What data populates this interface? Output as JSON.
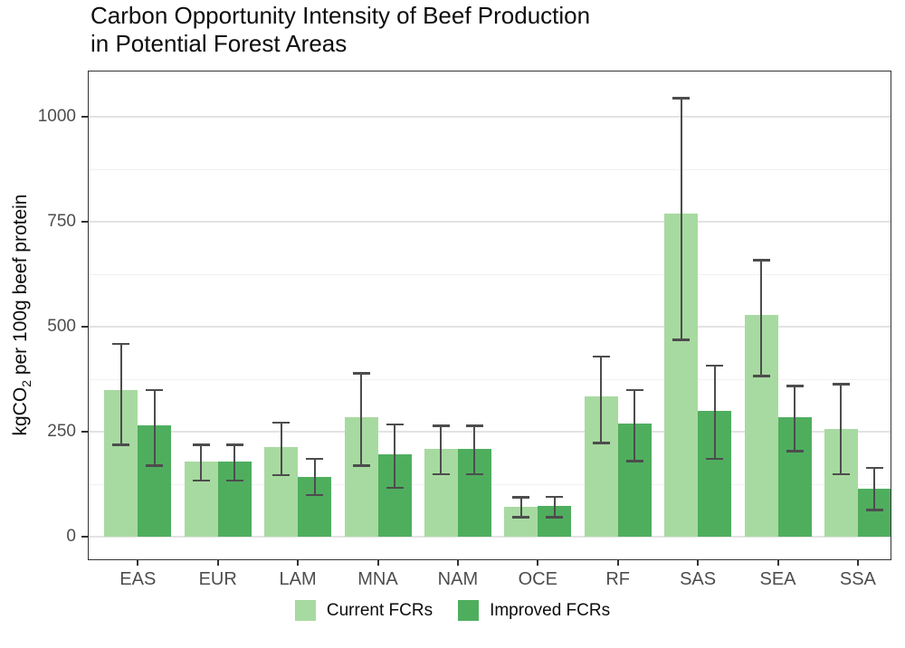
{
  "chart_data": {
    "type": "bar",
    "title": "Carbon Opportunity Intensity of Beef Production\nin Potential Forest Areas",
    "xlabel": "",
    "ylabel_parts": {
      "pre": "kgCO",
      "sub": "2",
      "post": " per 100g beef protein"
    },
    "categories": [
      "EAS",
      "EUR",
      "LAM",
      "MNA",
      "NAM",
      "OCE",
      "RF",
      "SAS",
      "SEA",
      "SSA"
    ],
    "series": [
      {
        "name": "Current FCRs",
        "color": "#a7daa0",
        "values": [
          350,
          180,
          215,
          285,
          210,
          72,
          335,
          770,
          528,
          258
        ],
        "error_low": [
          220,
          135,
          148,
          170,
          150,
          47,
          224,
          470,
          384,
          150
        ],
        "error_high": [
          460,
          220,
          273,
          390,
          265,
          95,
          430,
          1045,
          660,
          364
        ]
      },
      {
        "name": "Improved FCRs",
        "color": "#4fae5e",
        "values": [
          265,
          180,
          142,
          196,
          210,
          73,
          270,
          300,
          286,
          114
        ],
        "error_low": [
          170,
          135,
          100,
          118,
          150,
          48,
          181,
          186,
          205,
          65
        ],
        "error_high": [
          350,
          220,
          186,
          268,
          265,
          96,
          350,
          408,
          360,
          165
        ]
      }
    ],
    "y_axis": {
      "ticks": [
        0,
        250,
        500,
        750,
        1000
      ],
      "minor_gridlines": [
        125,
        375,
        625,
        875
      ],
      "range": [
        0,
        1110
      ]
    },
    "error_bar_color": "#4d4d4d",
    "legend_position": "bottom",
    "grid": true
  }
}
